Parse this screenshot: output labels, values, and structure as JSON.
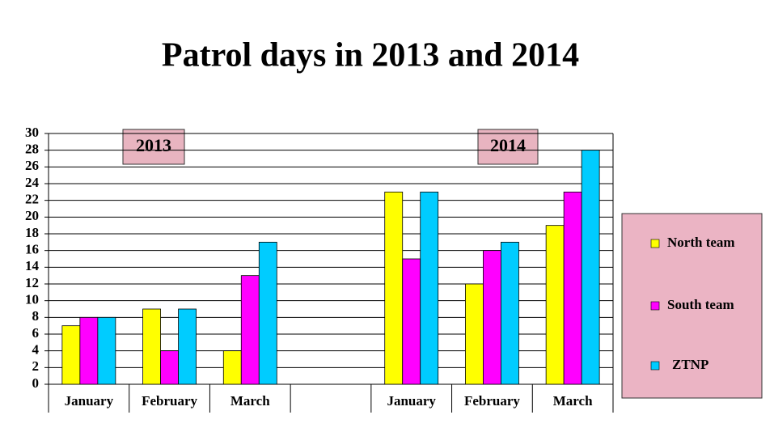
{
  "chart_data": {
    "type": "bar",
    "title": "Patrol days in 2013 and 2014",
    "categories": [
      "January",
      "February",
      "March",
      null,
      "January",
      "February",
      "March"
    ],
    "series": [
      {
        "name": "North team",
        "color": "#ffff00",
        "values": [
          7,
          9,
          4,
          null,
          23,
          12,
          19
        ]
      },
      {
        "name": "South team",
        "color": "#ff00ff",
        "values": [
          8,
          4,
          13,
          null,
          15,
          16,
          23
        ]
      },
      {
        "name": "ZTNP",
        "color": "#00ccff",
        "values": [
          8,
          9,
          17,
          null,
          23,
          17,
          28
        ]
      }
    ],
    "annotations": [
      "2013",
      "2014"
    ],
    "ylim": [
      0,
      30
    ],
    "yticks": [
      0,
      2,
      4,
      6,
      8,
      10,
      12,
      14,
      16,
      18,
      20,
      22,
      24,
      26,
      28,
      30
    ],
    "grid": true,
    "legend": "right"
  }
}
